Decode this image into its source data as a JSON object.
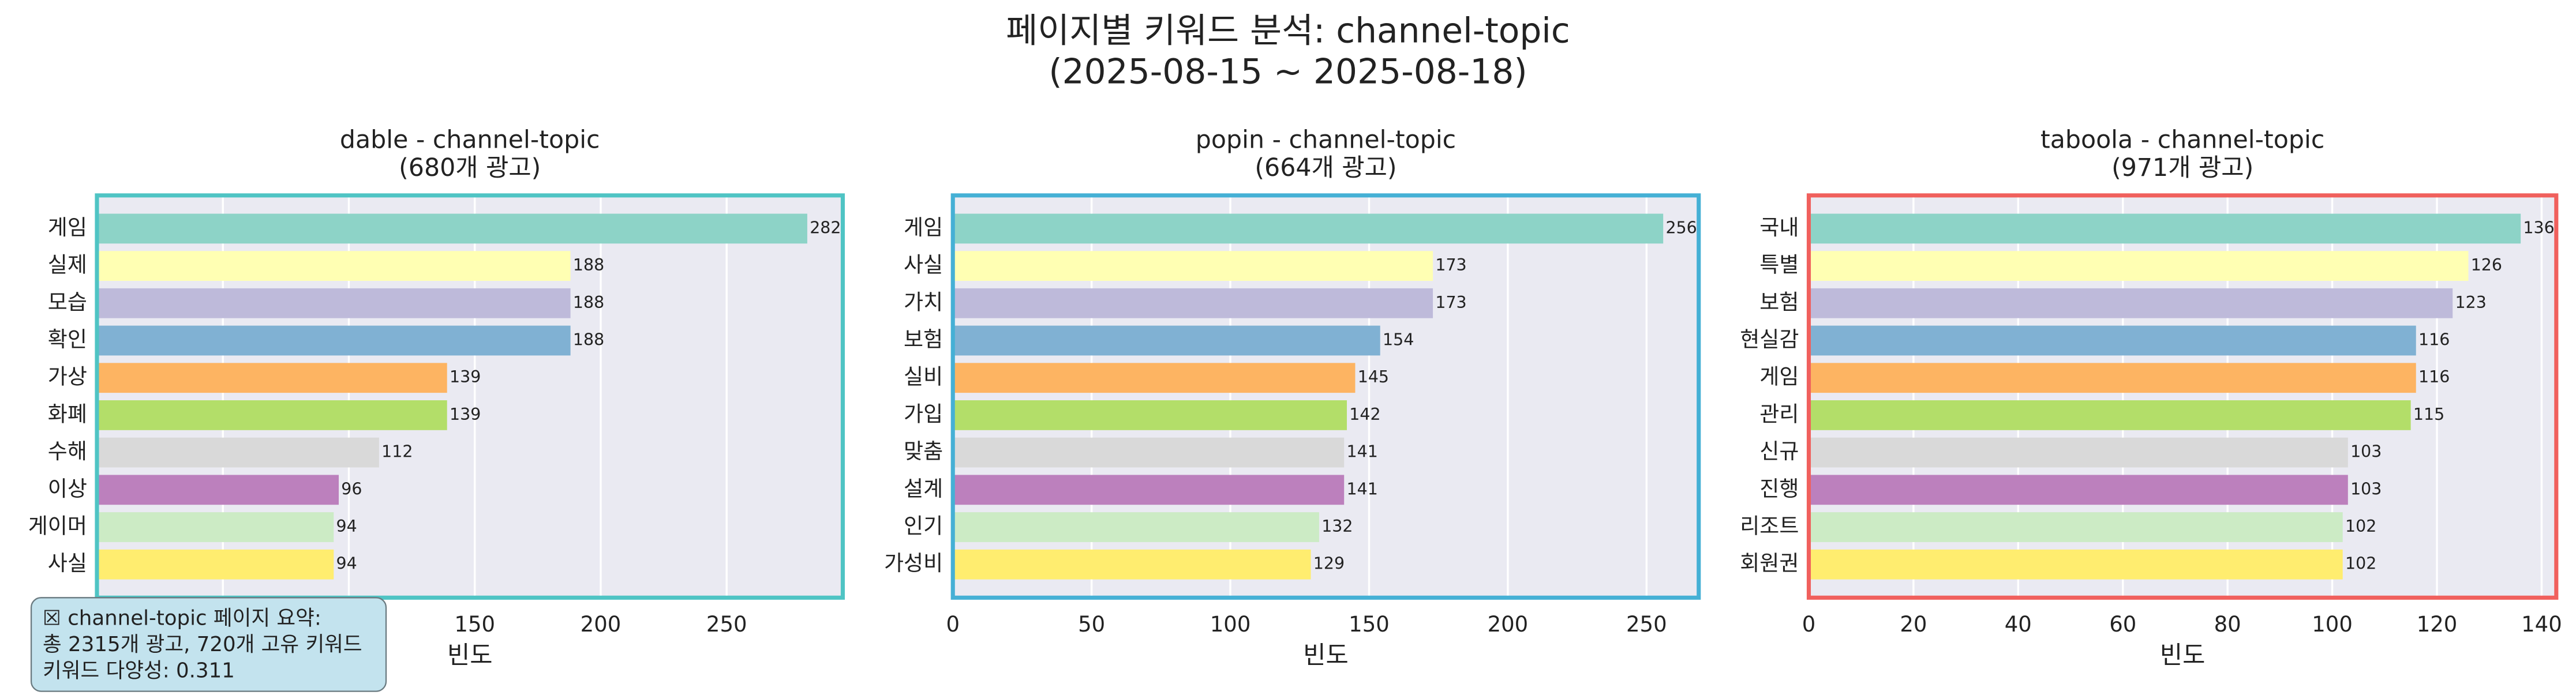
{
  "title": [
    "페이지별 키워드 분석: channel-topic",
    "(2025-08-15 ~ 2025-08-18)"
  ],
  "annotation": [
    "☒ channel-topic 페이지 요약:",
    "총 2315개 광고, 720개 고유 키워드",
    "키워드 다양성: 0.311"
  ],
  "chart_data": [
    {
      "type": "bar",
      "orientation": "horizontal",
      "title": "dable - channel-topic",
      "subtitle": "(680개 광고)",
      "categories": [
        "게임",
        "실제",
        "모습",
        "확인",
        "가상",
        "화폐",
        "수해",
        "이상",
        "게이머",
        "사실"
      ],
      "values": [
        282,
        188,
        188,
        188,
        139,
        139,
        112,
        96,
        94,
        94
      ],
      "colors": [
        "#8dd3c7",
        "#ffffb3",
        "#bebada",
        "#80b1d3",
        "#fdb462",
        "#b3de69",
        "#d9d9d9",
        "#bc80bd",
        "#ccebc5",
        "#ffed6f"
      ],
      "xlabel": "빈도",
      "xlim": [
        0,
        296.1
      ],
      "xticks": [
        0,
        50,
        100,
        150,
        200,
        250
      ],
      "grid": true,
      "background": "#eaeaf2",
      "frame_color": "#4fc4c4"
    },
    {
      "type": "bar",
      "orientation": "horizontal",
      "title": "popin - channel-topic",
      "subtitle": "(664개 광고)",
      "categories": [
        "게임",
        "사실",
        "가치",
        "보험",
        "실비",
        "가입",
        "맞춤",
        "설계",
        "인기",
        "가성비"
      ],
      "values": [
        256,
        173,
        173,
        154,
        145,
        142,
        141,
        141,
        132,
        129
      ],
      "colors": [
        "#8dd3c7",
        "#ffffb3",
        "#bebada",
        "#80b1d3",
        "#fdb462",
        "#b3de69",
        "#d9d9d9",
        "#bc80bd",
        "#ccebc5",
        "#ffed6f"
      ],
      "xlabel": "빈도",
      "xlim": [
        0,
        268.8
      ],
      "xticks": [
        0,
        50,
        100,
        150,
        200,
        250
      ],
      "grid": true,
      "background": "#eaeaf2",
      "frame_color": "#45b0d5"
    },
    {
      "type": "bar",
      "orientation": "horizontal",
      "title": "taboola - channel-topic",
      "subtitle": "(971개 광고)",
      "categories": [
        "국내",
        "특별",
        "보험",
        "현실감",
        "게임",
        "관리",
        "신규",
        "진행",
        "리조트",
        "회원권"
      ],
      "values": [
        136,
        126,
        123,
        116,
        116,
        115,
        103,
        103,
        102,
        102
      ],
      "colors": [
        "#8dd3c7",
        "#ffffb3",
        "#bebada",
        "#80b1d3",
        "#fdb462",
        "#b3de69",
        "#d9d9d9",
        "#bc80bd",
        "#ccebc5",
        "#ffed6f"
      ],
      "xlabel": "빈도",
      "xlim": [
        0,
        142.8
      ],
      "xticks": [
        0,
        20,
        40,
        60,
        80,
        100,
        120,
        140
      ],
      "grid": true,
      "background": "#eaeaf2",
      "frame_color": "#f0605d"
    }
  ]
}
